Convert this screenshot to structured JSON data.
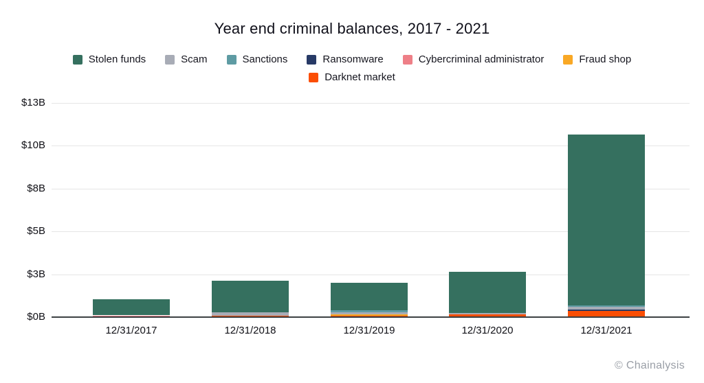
{
  "title": "Year end criminal balances, 2017 - 2021",
  "watermark": "© Chainalysis",
  "chart_data": {
    "type": "bar",
    "stacked": true,
    "title": "Year end criminal balances, 2017 - 2021",
    "unit": "USD billions",
    "xlabel": "",
    "ylabel": "",
    "ylim": [
      0,
      12.5
    ],
    "grid": true,
    "legend_position": "top-center",
    "categories": [
      "12/31/2017",
      "12/31/2018",
      "12/31/2019",
      "12/31/2020",
      "12/31/2021"
    ],
    "series": [
      {
        "name": "Stolen funds",
        "color": "#35705f",
        "values": [
          0.93,
          1.86,
          1.6,
          2.41,
          9.98
        ]
      },
      {
        "name": "Scam",
        "color": "#a8acb6",
        "values": [
          0,
          0.2,
          0.13,
          0.08,
          0.16
        ]
      },
      {
        "name": "Sanctions",
        "color": "#5e9ba3",
        "values": [
          0,
          0,
          0.11,
          0,
          0.08
        ]
      },
      {
        "name": "Ransomware",
        "color": "#273a66",
        "values": [
          0,
          0,
          0,
          0,
          0.07
        ]
      },
      {
        "name": "Cybercriminal administrator",
        "color": "#ee7f87",
        "values": [
          0.06,
          0,
          0,
          0,
          0
        ]
      },
      {
        "name": "Fraud shop",
        "color": "#f9a825",
        "values": [
          0,
          0,
          0.08,
          0,
          0
        ]
      },
      {
        "name": "Darknet market",
        "color": "#fb4e04",
        "values": [
          0.04,
          0.08,
          0.08,
          0.15,
          0.38
        ]
      }
    ],
    "stack_order_bottom_to_top": [
      "Darknet market",
      "Fraud shop",
      "Cybercriminal administrator",
      "Ransomware",
      "Scam",
      "Sanctions",
      "Stolen funds"
    ],
    "totals": [
      1.03,
      2.14,
      2.0,
      2.64,
      10.67
    ],
    "y_ticks": [
      {
        "value": 0,
        "label": "$0B"
      },
      {
        "value": 2.5,
        "label": "$3B"
      },
      {
        "value": 5,
        "label": "$5B"
      },
      {
        "value": 7.5,
        "label": "$8B"
      },
      {
        "value": 10,
        "label": "$10B"
      },
      {
        "value": 12.5,
        "label": "$13B"
      }
    ]
  }
}
